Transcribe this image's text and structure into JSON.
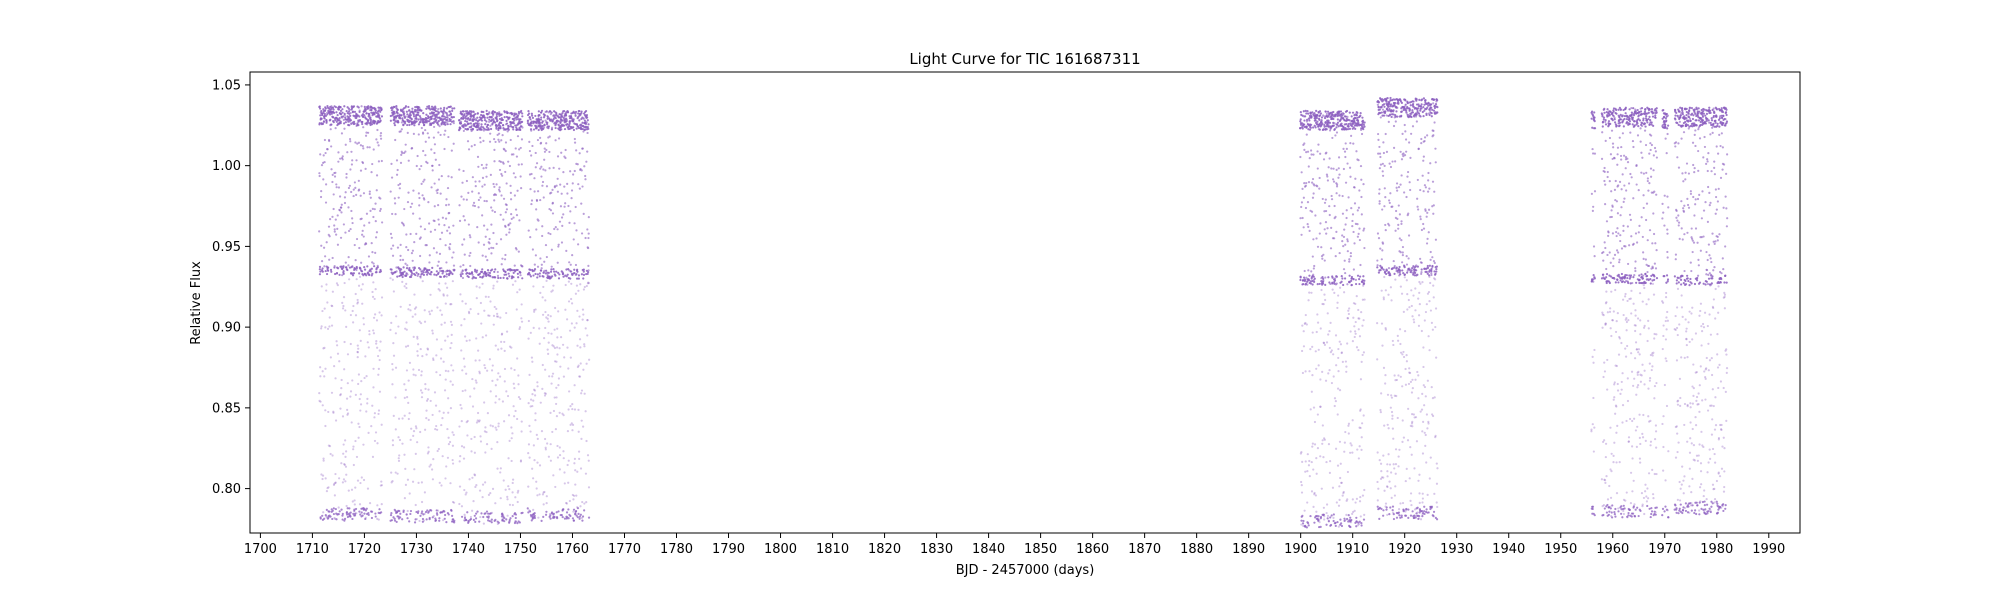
{
  "chart_data": {
    "type": "scatter",
    "title": "Light Curve for TIC 161687311",
    "xlabel": "BJD - 2457000 (days)",
    "ylabel": "Relative Flux",
    "xlim": [
      1698,
      1996
    ],
    "ylim": [
      0.7725,
      1.058
    ],
    "xticks": [
      1700,
      1710,
      1720,
      1730,
      1740,
      1750,
      1760,
      1770,
      1780,
      1790,
      1800,
      1810,
      1820,
      1830,
      1840,
      1850,
      1860,
      1870,
      1880,
      1890,
      1900,
      1910,
      1920,
      1930,
      1940,
      1950,
      1960,
      1970,
      1980,
      1990
    ],
    "yticks": [
      0.8,
      0.85,
      0.9,
      0.95,
      1.0,
      1.05
    ],
    "ytick_labels": [
      "0.80",
      "0.85",
      "0.90",
      "0.95",
      "1.00",
      "1.05"
    ],
    "grid": false,
    "marker_color": "#8c5fc0",
    "series": [
      {
        "segments": [
          {
            "start": 1711.3,
            "end": 1723.4,
            "min": 0.78,
            "max": 1.037,
            "upper_floor": 0.932
          },
          {
            "start": 1725.0,
            "end": 1737.3,
            "min": 0.779,
            "max": 1.037,
            "upper_floor": 0.931
          },
          {
            "start": 1738.2,
            "end": 1750.4,
            "min": 0.778,
            "max": 1.034,
            "upper_floor": 0.93
          },
          {
            "start": 1751.4,
            "end": 1763.2,
            "min": 0.78,
            "max": 1.034,
            "upper_floor": 0.93
          },
          {
            "start": 1899.9,
            "end": 1912.3,
            "min": 0.776,
            "max": 1.034,
            "upper_floor": 0.926
          },
          {
            "start": 1914.7,
            "end": 1926.3,
            "min": 0.781,
            "max": 1.042,
            "upper_floor": 0.932
          },
          {
            "start": 1955.9,
            "end": 1956.6,
            "min": 0.782,
            "max": 1.035,
            "upper_floor": 0.928
          },
          {
            "start": 1957.9,
            "end": 1968.5,
            "min": 0.782,
            "max": 1.036,
            "upper_floor": 0.927
          },
          {
            "start": 1969.5,
            "end": 1970.7,
            "min": 0.782,
            "max": 1.035,
            "upper_floor": 0.927
          },
          {
            "start": 1971.9,
            "end": 1982.0,
            "min": 0.784,
            "max": 1.036,
            "upper_floor": 0.926
          }
        ]
      }
    ]
  }
}
